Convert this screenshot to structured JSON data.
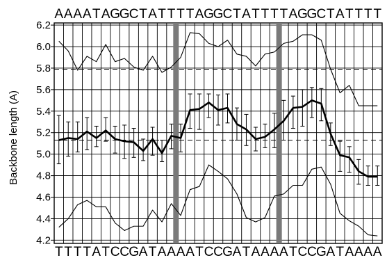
{
  "chart_data": {
    "type": "line",
    "top_sequence": "AAAATAGGCTATTTTAGGCTATTTTAGGCTATTTT",
    "bottom_sequence": "TTTTATCCGATAAAATCCGATAAAATCCGATAAAA",
    "ylabel": "Backbone length (A)",
    "ylim": [
      4.17,
      6.22
    ],
    "yticks": [
      "4.2",
      "4.4",
      "4.6",
      "4.8",
      "5.0",
      "5.2",
      "5.4",
      "5.6",
      "5.8",
      "6.0",
      "6.2"
    ],
    "grid": true,
    "n_positions": 35,
    "reference_lines": [
      5.79,
      5.13
    ],
    "highlight_positions": [
      13.5,
      24.5
    ],
    "mean": {
      "x": [
        1,
        2,
        3,
        4,
        5,
        6,
        7,
        8,
        9,
        10,
        11,
        12,
        13,
        14,
        15,
        16,
        17,
        18,
        19,
        20,
        21,
        22,
        23,
        24,
        25,
        26,
        27,
        28,
        29,
        30,
        31,
        32,
        33,
        34,
        35
      ],
      "values": [
        5.13,
        5.15,
        5.14,
        5.21,
        5.15,
        5.22,
        5.14,
        5.12,
        5.11,
        5.03,
        5.14,
        5.01,
        5.17,
        5.15,
        5.41,
        5.42,
        5.48,
        5.41,
        5.43,
        5.28,
        5.23,
        5.14,
        5.16,
        5.23,
        5.31,
        5.43,
        5.44,
        5.5,
        5.47,
        5.19,
        4.99,
        4.97,
        4.84,
        4.79,
        4.79
      ],
      "error_low": [
        4.91,
        4.98,
        5.02,
        5.04,
        5.07,
        5.12,
        5.01,
        4.96,
        4.97,
        4.94,
        4.99,
        4.93,
        5.05,
        5.02,
        5.24,
        5.23,
        5.34,
        5.27,
        5.29,
        5.13,
        5.08,
        5.03,
        5.06,
        5.06,
        5.13,
        5.24,
        5.26,
        5.34,
        5.31,
        5.08,
        4.84,
        4.83,
        4.72,
        4.71,
        4.71
      ],
      "error_high": [
        5.36,
        5.3,
        5.3,
        5.34,
        5.26,
        5.34,
        5.26,
        5.27,
        5.24,
        5.14,
        5.25,
        5.13,
        5.28,
        5.28,
        5.56,
        5.56,
        5.56,
        5.55,
        5.56,
        5.43,
        5.37,
        5.25,
        5.28,
        5.38,
        5.5,
        5.54,
        5.6,
        5.62,
        5.61,
        5.29,
        5.12,
        5.07,
        4.95,
        4.89,
        4.89
      ]
    },
    "upper_line": {
      "x": [
        1,
        2,
        3,
        4,
        5,
        6,
        7,
        8,
        9,
        10,
        11,
        12,
        13,
        14,
        15,
        16,
        17,
        18,
        19,
        20,
        21,
        22,
        23,
        24,
        25,
        26,
        27,
        28,
        29,
        30,
        31,
        32,
        33,
        34,
        35
      ],
      "values": [
        6.05,
        5.96,
        5.78,
        5.91,
        5.86,
        6.02,
        5.86,
        5.89,
        5.81,
        5.78,
        5.91,
        5.76,
        5.81,
        5.9,
        6.13,
        6.12,
        6.03,
        6.0,
        6.06,
        5.93,
        5.91,
        5.82,
        5.93,
        5.95,
        6.03,
        6.05,
        6.11,
        6.11,
        6.06,
        5.79,
        5.57,
        5.64,
        5.45,
        5.45,
        5.45
      ]
    },
    "lower_line": {
      "x": [
        1,
        2,
        3,
        4,
        5,
        6,
        7,
        8,
        9,
        10,
        11,
        12,
        13,
        14,
        15,
        16,
        17,
        18,
        19,
        20,
        21,
        22,
        23,
        24,
        25,
        26,
        27,
        28,
        29,
        30,
        31,
        32,
        33,
        34,
        35
      ],
      "values": [
        4.32,
        4.4,
        4.53,
        4.57,
        4.51,
        4.51,
        4.36,
        4.29,
        4.33,
        4.33,
        4.48,
        4.37,
        4.54,
        4.43,
        4.67,
        4.7,
        4.9,
        4.84,
        4.77,
        4.63,
        4.41,
        4.37,
        4.41,
        4.61,
        4.63,
        4.71,
        4.71,
        4.86,
        4.88,
        4.72,
        4.45,
        4.38,
        4.33,
        4.25,
        4.24
      ]
    }
  }
}
